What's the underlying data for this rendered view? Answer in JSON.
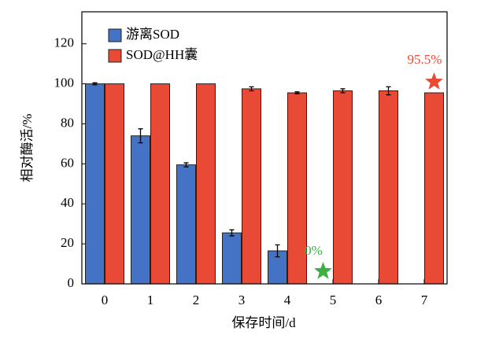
{
  "chart_data": {
    "type": "bar",
    "xlabel": "保存时间/d",
    "ylabel": "相对酶活/%",
    "categories": [
      "0",
      "1",
      "2",
      "3",
      "4",
      "5",
      "6",
      "7"
    ],
    "series": [
      {
        "name": "游离SOD",
        "color": "#4472c4",
        "values": [
          100,
          74,
          59.5,
          25.5,
          16.5,
          0,
          null,
          null
        ],
        "errors": [
          0.5,
          3.5,
          1,
          1.5,
          3,
          null,
          null,
          null
        ],
        "value_labels": [
          null,
          null,
          null,
          null,
          null,
          "0%",
          null,
          null
        ],
        "label_color": "#3cb043"
      },
      {
        "name": "SOD@HH囊",
        "color": "#e84a35",
        "values": [
          100,
          100,
          100,
          97.5,
          95.5,
          96.5,
          96.5,
          95.5
        ],
        "errors": [
          null,
          null,
          null,
          1,
          0.5,
          1,
          2,
          null
        ],
        "value_labels": [
          null,
          null,
          null,
          null,
          null,
          null,
          null,
          "95.5%"
        ],
        "label_color": "#e84a35"
      }
    ],
    "ylim": [
      0,
      136
    ],
    "yticks": [
      0,
      20,
      40,
      60,
      80,
      100,
      120
    ],
    "legend": "upper left"
  }
}
